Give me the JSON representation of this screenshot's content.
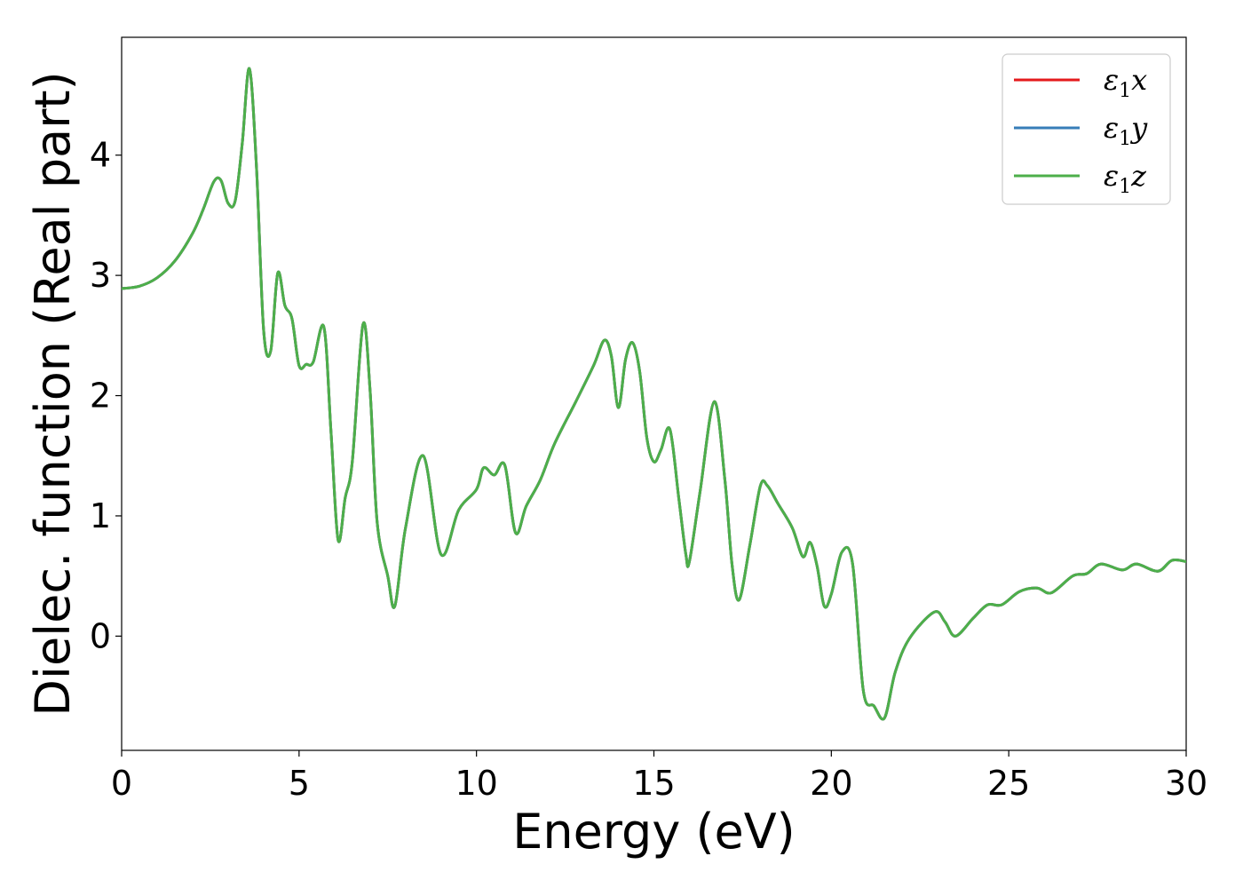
{
  "chart_data": {
    "type": "line",
    "title": "",
    "xlabel": "Energy (eV)",
    "ylabel": "Dielec. function (Real part)",
    "xlim": [
      0,
      30
    ],
    "ylim": [
      -0.95,
      4.98
    ],
    "xticks": [
      0,
      5,
      10,
      15,
      20,
      25,
      30
    ],
    "yticks": [
      0,
      1,
      2,
      3,
      4
    ],
    "grid": false,
    "legend": {
      "placement": "top-right"
    },
    "series": [
      {
        "name": "ε1x",
        "name_base": "ε",
        "name_sub": "1",
        "name_var": "x",
        "color": "#e41a1c",
        "x": [
          0,
          0.5,
          1.0,
          1.5,
          2.0,
          2.3,
          2.6,
          2.8,
          3.0,
          3.2,
          3.4,
          3.6,
          3.8,
          4.0,
          4.2,
          4.4,
          4.6,
          4.8,
          5.0,
          5.2,
          5.4,
          5.7,
          5.9,
          6.1,
          6.3,
          6.5,
          6.8,
          7.0,
          7.2,
          7.5,
          7.7,
          8.0,
          8.5,
          9.0,
          9.5,
          10.0,
          10.2,
          10.5,
          10.8,
          11.1,
          11.4,
          11.8,
          12.2,
          12.8,
          13.3,
          13.6,
          13.8,
          14.0,
          14.2,
          14.4,
          14.6,
          14.8,
          15.0,
          15.2,
          15.45,
          15.7,
          15.9,
          16.0,
          16.3,
          16.7,
          17.0,
          17.2,
          17.4,
          17.7,
          18.0,
          18.2,
          18.5,
          18.9,
          19.2,
          19.4,
          19.6,
          19.8,
          20.0,
          20.3,
          20.6,
          20.9,
          21.2,
          21.5,
          21.8,
          22.2,
          22.9,
          23.2,
          23.5,
          24.0,
          24.4,
          24.8,
          25.3,
          25.8,
          26.2,
          26.8,
          27.2,
          27.6,
          28.2,
          28.6,
          29.2,
          29.6,
          30.0
        ],
        "y": [
          2.89,
          2.91,
          2.98,
          3.12,
          3.35,
          3.55,
          3.78,
          3.79,
          3.6,
          3.62,
          4.1,
          4.72,
          3.9,
          2.55,
          2.37,
          3.02,
          2.75,
          2.64,
          2.25,
          2.26,
          2.28,
          2.57,
          1.7,
          0.8,
          1.15,
          1.45,
          2.59,
          2.05,
          0.95,
          0.5,
          0.25,
          0.9,
          1.5,
          0.68,
          1.05,
          1.22,
          1.4,
          1.34,
          1.42,
          0.86,
          1.08,
          1.3,
          1.6,
          1.95,
          2.25,
          2.46,
          2.33,
          1.9,
          2.3,
          2.44,
          2.2,
          1.65,
          1.45,
          1.55,
          1.72,
          1.15,
          0.68,
          0.62,
          1.2,
          1.95,
          1.3,
          0.6,
          0.3,
          0.75,
          1.25,
          1.25,
          1.1,
          0.9,
          0.66,
          0.78,
          0.58,
          0.25,
          0.35,
          0.7,
          0.6,
          -0.45,
          -0.58,
          -0.68,
          -0.3,
          -0.02,
          0.2,
          0.12,
          0.0,
          0.15,
          0.26,
          0.26,
          0.37,
          0.4,
          0.36,
          0.5,
          0.52,
          0.6,
          0.55,
          0.6,
          0.54,
          0.63,
          0.62
        ]
      },
      {
        "name": "ε1y",
        "name_base": "ε",
        "name_sub": "1",
        "name_var": "y",
        "color": "#377eb8",
        "x": [
          0,
          0.5,
          1.0,
          1.5,
          2.0,
          2.3,
          2.6,
          2.8,
          3.0,
          3.2,
          3.4,
          3.6,
          3.8,
          4.0,
          4.2,
          4.4,
          4.6,
          4.8,
          5.0,
          5.2,
          5.4,
          5.7,
          5.9,
          6.1,
          6.3,
          6.5,
          6.8,
          7.0,
          7.2,
          7.5,
          7.7,
          8.0,
          8.5,
          9.0,
          9.5,
          10.0,
          10.2,
          10.5,
          10.8,
          11.1,
          11.4,
          11.8,
          12.2,
          12.8,
          13.3,
          13.6,
          13.8,
          14.0,
          14.2,
          14.4,
          14.6,
          14.8,
          15.0,
          15.2,
          15.45,
          15.7,
          15.9,
          16.0,
          16.3,
          16.7,
          17.0,
          17.2,
          17.4,
          17.7,
          18.0,
          18.2,
          18.5,
          18.9,
          19.2,
          19.4,
          19.6,
          19.8,
          20.0,
          20.3,
          20.6,
          20.9,
          21.2,
          21.5,
          21.8,
          22.2,
          22.9,
          23.2,
          23.5,
          24.0,
          24.4,
          24.8,
          25.3,
          25.8,
          26.2,
          26.8,
          27.2,
          27.6,
          28.2,
          28.6,
          29.2,
          29.6,
          30.0
        ],
        "y": [
          2.89,
          2.91,
          2.98,
          3.12,
          3.35,
          3.55,
          3.78,
          3.79,
          3.6,
          3.62,
          4.1,
          4.72,
          3.9,
          2.55,
          2.37,
          3.02,
          2.75,
          2.64,
          2.25,
          2.26,
          2.28,
          2.57,
          1.7,
          0.8,
          1.15,
          1.45,
          2.59,
          2.05,
          0.95,
          0.5,
          0.25,
          0.9,
          1.5,
          0.68,
          1.05,
          1.22,
          1.4,
          1.34,
          1.42,
          0.86,
          1.08,
          1.3,
          1.6,
          1.95,
          2.25,
          2.46,
          2.33,
          1.9,
          2.3,
          2.44,
          2.2,
          1.65,
          1.45,
          1.55,
          1.72,
          1.15,
          0.68,
          0.62,
          1.2,
          1.95,
          1.3,
          0.6,
          0.3,
          0.75,
          1.25,
          1.25,
          1.1,
          0.9,
          0.66,
          0.78,
          0.58,
          0.25,
          0.35,
          0.7,
          0.6,
          -0.45,
          -0.58,
          -0.68,
          -0.3,
          -0.02,
          0.2,
          0.12,
          0.0,
          0.15,
          0.26,
          0.26,
          0.37,
          0.4,
          0.36,
          0.5,
          0.52,
          0.6,
          0.55,
          0.6,
          0.54,
          0.63,
          0.62
        ]
      },
      {
        "name": "ε1z",
        "name_base": "ε",
        "name_sub": "1",
        "name_var": "z",
        "color": "#4daf4a",
        "x": [
          0,
          0.5,
          1.0,
          1.5,
          2.0,
          2.3,
          2.6,
          2.8,
          3.0,
          3.2,
          3.4,
          3.6,
          3.8,
          4.0,
          4.2,
          4.4,
          4.6,
          4.8,
          5.0,
          5.2,
          5.4,
          5.7,
          5.9,
          6.1,
          6.3,
          6.5,
          6.8,
          7.0,
          7.2,
          7.5,
          7.7,
          8.0,
          8.5,
          9.0,
          9.5,
          10.0,
          10.2,
          10.5,
          10.8,
          11.1,
          11.4,
          11.8,
          12.2,
          12.8,
          13.3,
          13.6,
          13.8,
          14.0,
          14.2,
          14.4,
          14.6,
          14.8,
          15.0,
          15.2,
          15.45,
          15.7,
          15.9,
          16.0,
          16.3,
          16.7,
          17.0,
          17.2,
          17.4,
          17.7,
          18.0,
          18.2,
          18.5,
          18.9,
          19.2,
          19.4,
          19.6,
          19.8,
          20.0,
          20.3,
          20.6,
          20.9,
          21.2,
          21.5,
          21.8,
          22.2,
          22.9,
          23.2,
          23.5,
          24.0,
          24.4,
          24.8,
          25.3,
          25.8,
          26.2,
          26.8,
          27.2,
          27.6,
          28.2,
          28.6,
          29.2,
          29.6,
          30.0
        ],
        "y": [
          2.89,
          2.91,
          2.98,
          3.12,
          3.35,
          3.55,
          3.78,
          3.79,
          3.6,
          3.62,
          4.1,
          4.72,
          3.9,
          2.55,
          2.37,
          3.02,
          2.75,
          2.64,
          2.25,
          2.26,
          2.28,
          2.57,
          1.7,
          0.8,
          1.15,
          1.45,
          2.59,
          2.05,
          0.95,
          0.5,
          0.25,
          0.9,
          1.5,
          0.68,
          1.05,
          1.22,
          1.4,
          1.34,
          1.42,
          0.86,
          1.08,
          1.3,
          1.6,
          1.95,
          2.25,
          2.46,
          2.33,
          1.9,
          2.3,
          2.44,
          2.2,
          1.65,
          1.45,
          1.55,
          1.72,
          1.15,
          0.68,
          0.62,
          1.2,
          1.95,
          1.3,
          0.6,
          0.3,
          0.75,
          1.25,
          1.25,
          1.1,
          0.9,
          0.66,
          0.78,
          0.58,
          0.25,
          0.35,
          0.7,
          0.6,
          -0.45,
          -0.58,
          -0.68,
          -0.3,
          -0.02,
          0.2,
          0.12,
          0.0,
          0.15,
          0.26,
          0.26,
          0.37,
          0.4,
          0.36,
          0.5,
          0.52,
          0.6,
          0.55,
          0.6,
          0.54,
          0.63,
          0.62
        ]
      }
    ]
  }
}
